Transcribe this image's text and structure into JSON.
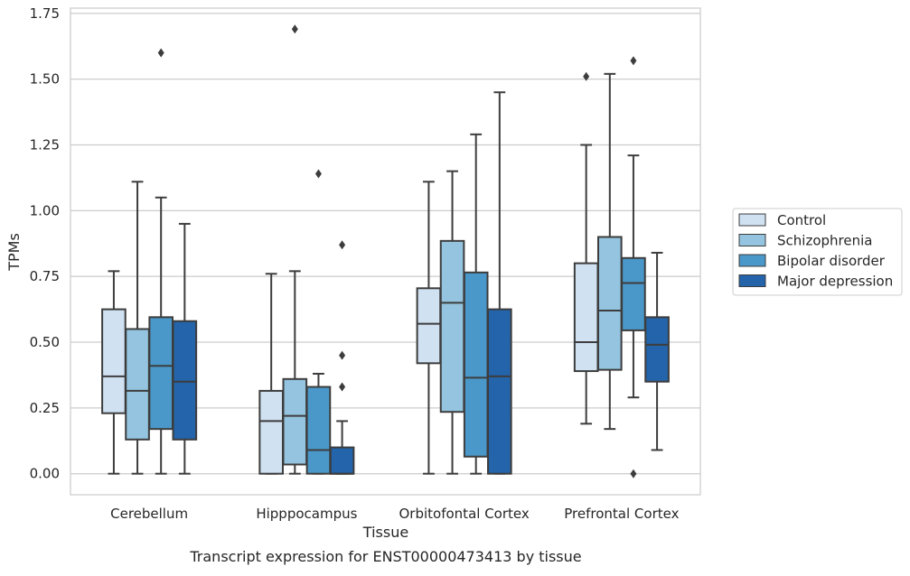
{
  "chart_data": {
    "type": "box",
    "title": "",
    "caption": "Transcript expression for ENST00000473413 by tissue",
    "xlabel": "Tissue",
    "ylabel": "TPMs",
    "ylim": [
      -0.08,
      1.77
    ],
    "yticks": [
      "0.00",
      "0.25",
      "0.50",
      "0.75",
      "1.00",
      "1.25",
      "1.50",
      "1.75"
    ],
    "ytick_values": [
      0,
      0.25,
      0.5,
      0.75,
      1.0,
      1.25,
      1.5,
      1.75
    ],
    "grid": true,
    "legend_position": "right",
    "categories": [
      "Cerebellum",
      "Hipppocampus",
      "Orbitofontal Cortex",
      "Prefrontal Cortex"
    ],
    "series": [
      {
        "name": "Control",
        "color": "#d0e1f2",
        "boxes": [
          {
            "min": 0.0,
            "q1": 0.23,
            "median": 0.37,
            "q3": 0.625,
            "max": 0.77,
            "outliers": []
          },
          {
            "min": 0.0,
            "q1": 0.0,
            "median": 0.2,
            "q3": 0.315,
            "max": 0.76,
            "outliers": []
          },
          {
            "min": 0.0,
            "q1": 0.42,
            "median": 0.57,
            "q3": 0.705,
            "max": 1.11,
            "outliers": []
          },
          {
            "min": 0.19,
            "q1": 0.39,
            "median": 0.5,
            "q3": 0.8,
            "max": 1.25,
            "outliers": [
              1.51
            ]
          }
        ]
      },
      {
        "name": "Schizophrenia",
        "color": "#94c4df",
        "boxes": [
          {
            "min": 0.0,
            "q1": 0.13,
            "median": 0.315,
            "q3": 0.55,
            "max": 1.11,
            "outliers": []
          },
          {
            "min": 0.0,
            "q1": 0.035,
            "median": 0.22,
            "q3": 0.36,
            "max": 0.77,
            "outliers": [
              1.69
            ]
          },
          {
            "min": 0.0,
            "q1": 0.235,
            "median": 0.65,
            "q3": 0.885,
            "max": 1.15,
            "outliers": []
          },
          {
            "min": 0.17,
            "q1": 0.395,
            "median": 0.62,
            "q3": 0.9,
            "max": 1.52,
            "outliers": []
          }
        ]
      },
      {
        "name": "Bipolar disorder",
        "color": "#4a98c9",
        "boxes": [
          {
            "min": 0.0,
            "q1": 0.17,
            "median": 0.41,
            "q3": 0.595,
            "max": 1.05,
            "outliers": [
              1.6
            ]
          },
          {
            "min": 0.0,
            "q1": 0.0,
            "median": 0.09,
            "q3": 0.33,
            "max": 0.38,
            "outliers": [
              1.14
            ]
          },
          {
            "min": 0.0,
            "q1": 0.065,
            "median": 0.365,
            "q3": 0.765,
            "max": 1.29,
            "outliers": []
          },
          {
            "min": 0.29,
            "q1": 0.545,
            "median": 0.725,
            "q3": 0.82,
            "max": 1.21,
            "outliers": [
              1.57,
              0.0
            ]
          }
        ]
      },
      {
        "name": "Major depression",
        "color": "#2364aa",
        "boxes": [
          {
            "min": 0.0,
            "q1": 0.13,
            "median": 0.35,
            "q3": 0.58,
            "max": 0.95,
            "outliers": []
          },
          {
            "min": 0.0,
            "q1": 0.0,
            "median": 0.0,
            "q3": 0.1,
            "max": 0.2,
            "outliers": [
              0.87,
              0.45,
              0.33
            ]
          },
          {
            "min": 0.0,
            "q1": 0.0,
            "median": 0.37,
            "q3": 0.625,
            "max": 1.45,
            "outliers": []
          },
          {
            "min": 0.09,
            "q1": 0.35,
            "median": 0.49,
            "q3": 0.595,
            "max": 0.84,
            "outliers": []
          }
        ]
      }
    ]
  }
}
